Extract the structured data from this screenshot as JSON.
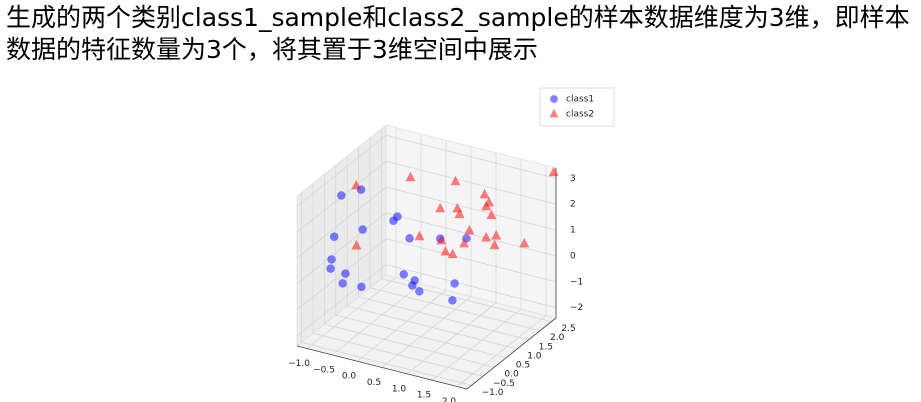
{
  "heading": "生成的两个类别class1_sample和class2_sample的样本数据维度为3维，即样本数据的特征数量为3个，将其置于3维空间中展示",
  "chart_data": {
    "type": "scatter3d",
    "series": [
      {
        "name": "class1",
        "color": "blue",
        "marker": "circle",
        "x": [
          -1.18,
          -1.15,
          -1.14,
          -0.92,
          -0.71,
          -0.78,
          -0.56,
          -0.55,
          -0.8,
          -0.55,
          -0.15,
          0.32,
          0.57,
          0.56,
          0.97,
          0.79,
          0.57,
          1.23,
          1.45,
          1.68
        ],
        "y": [
          0.7,
          1.5,
          0.3,
          -0.3,
          -0.8,
          0,
          -0.6,
          0.2,
          0.8,
          1.6,
          0.9,
          0.4,
          -0.4,
          0.1,
          -0.9,
          -0.2,
          1.2,
          0.9,
          -0.1,
          -0.7
        ],
        "z": [
          2.09,
          1.77,
          0.8,
          0.45,
          0.55,
          -0.24,
          -0.09,
          -0.78,
          0.89,
          0.79,
          1.64,
          1.38,
          0.67,
          0.08,
          0.79,
          -0.02,
          0.93,
          1.47,
          0.54,
          0.42
        ]
      },
      {
        "name": "class2",
        "color": "red",
        "marker": "triangle",
        "x": [
          -1.02,
          -0.65,
          -0.07,
          0.6,
          0.66,
          0.82,
          1.23,
          0.2,
          0.23,
          0.49,
          1.0,
          0.91,
          0.65,
          1.09,
          1.09,
          1.26,
          1.64,
          0.94,
          1.37,
          1.61,
          1.84,
          2.2
        ],
        "y": [
          1.0,
          0.2,
          1.3,
          1.8,
          1.0,
          1.4,
          0.6,
          1.1,
          2.0,
          1.6,
          0.8,
          1.5,
          2.3,
          2.0,
          2.2,
          1.7,
          1.1,
          2.4,
          1.9,
          1.3,
          2.1,
          2.6
        ],
        "z": [
          2.34,
          0.76,
          2.91,
          2.73,
          2.28,
          2.07,
          2.61,
          0.9,
          0.12,
          0.1,
          0.81,
          0.69,
          0.5,
          2.32,
          1.87,
          2.15,
          2.42,
          0.3,
          0.94,
          1.1,
          0.72,
          3.3
        ]
      }
    ],
    "xlim": [
      -1.2,
      2.2
    ],
    "ylim": [
      -1.2,
      2.7
    ],
    "zlim": [
      -2.4,
      3.4
    ],
    "xticks": [
      {
        "value": -1.0,
        "label": "−1.0"
      },
      {
        "value": -0.5,
        "label": "−0.5"
      },
      {
        "value": 0,
        "label": "0.0"
      },
      0.5,
      {
        "value": 1,
        "label": "1.0"
      },
      1.5,
      {
        "value": 2,
        "label": "2.0"
      }
    ],
    "yticks": [
      {
        "value": -1.0,
        "label": "−1.0"
      },
      {
        "value": -0.5,
        "label": "−0.5"
      },
      {
        "value": 0,
        "label": "0.0"
      },
      0.5,
      {
        "value": 1,
        "label": "1.0"
      },
      1.5,
      {
        "value": 2,
        "label": "2.0"
      },
      2.5
    ],
    "zticks": [
      {
        "value": -2,
        "label": "−2"
      },
      {
        "value": -1,
        "label": "−1"
      },
      0,
      1,
      2,
      3
    ],
    "grid": true,
    "legend": "upper right"
  }
}
